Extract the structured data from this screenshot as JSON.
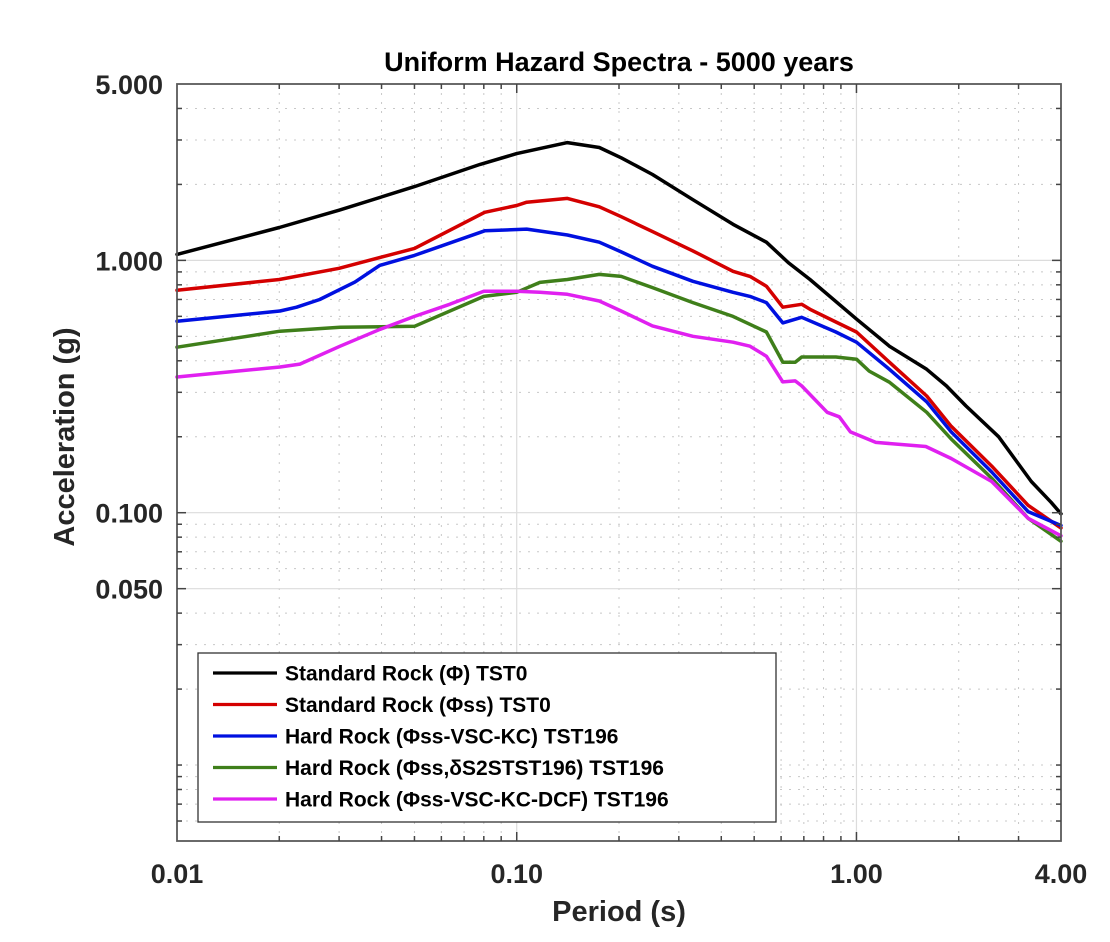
{
  "chart_data": {
    "type": "line",
    "title": "Uniform Hazard Spectra - 5000 years",
    "xlabel": "Period (s)",
    "ylabel": "Acceleration (g)",
    "xscale": "log",
    "yscale": "log",
    "xlim": [
      0.01,
      4.0
    ],
    "ylim": [
      0.005,
      5.0
    ],
    "xticks": [
      0.01,
      0.1,
      1.0,
      4.0
    ],
    "xtick_labels": [
      "0.01",
      "0.10",
      "1.00",
      "4.00"
    ],
    "yticks": [
      0.05,
      0.1,
      1.0,
      5.0
    ],
    "ytick_labels": [
      "0.050",
      "0.100",
      "1.000",
      "5.000"
    ],
    "grid": true,
    "legend_position": "bottom-left",
    "series": [
      {
        "name": "Standard Rock (Φ) TST0",
        "color": "#000000",
        "x": [
          0.01,
          0.02,
          0.03,
          0.05,
          0.078,
          0.1,
          0.141,
          0.175,
          0.203,
          0.251,
          0.33,
          0.433,
          0.543,
          0.63,
          0.73,
          1.0,
          1.25,
          1.61,
          1.84,
          2.1,
          2.62,
          3.27,
          3.74,
          4.0
        ],
        "y": [
          1.056,
          1.35,
          1.58,
          1.96,
          2.4,
          2.65,
          2.93,
          2.8,
          2.55,
          2.19,
          1.74,
          1.39,
          1.18,
          0.98,
          0.84,
          0.585,
          0.457,
          0.37,
          0.318,
          0.265,
          0.2,
          0.133,
          0.11,
          0.099
        ]
      },
      {
        "name": "Standard Rock (Φss) TST0",
        "color": "#d40000",
        "x": [
          0.01,
          0.02,
          0.03,
          0.05,
          0.0805,
          0.1,
          0.107,
          0.141,
          0.175,
          0.203,
          0.251,
          0.33,
          0.433,
          0.486,
          0.543,
          0.607,
          0.69,
          0.73,
          0.87,
          1.0,
          1.25,
          1.61,
          1.9,
          2.5,
          3.2,
          4.0
        ],
        "y": [
          0.761,
          0.84,
          0.93,
          1.115,
          1.55,
          1.65,
          1.7,
          1.76,
          1.63,
          1.49,
          1.3,
          1.09,
          0.905,
          0.864,
          0.79,
          0.652,
          0.67,
          0.64,
          0.57,
          0.52,
          0.395,
          0.29,
          0.22,
          0.153,
          0.107,
          0.087
        ]
      },
      {
        "name": "Hard Rock (Φss-VSC-KC) TST196",
        "color": "#0010e0",
        "x": [
          0.01,
          0.0201,
          0.0225,
          0.0263,
          0.0334,
          0.0395,
          0.05,
          0.0805,
          0.107,
          0.141,
          0.175,
          0.203,
          0.251,
          0.33,
          0.433,
          0.486,
          0.543,
          0.607,
          0.69,
          0.87,
          1.0,
          1.25,
          1.61,
          1.9,
          2.5,
          3.2,
          4.0
        ],
        "y": [
          0.574,
          0.63,
          0.652,
          0.7,
          0.82,
          0.955,
          1.046,
          1.31,
          1.33,
          1.26,
          1.18,
          1.08,
          0.947,
          0.826,
          0.747,
          0.72,
          0.68,
          0.565,
          0.595,
          0.52,
          0.474,
          0.37,
          0.275,
          0.209,
          0.145,
          0.101,
          0.089
        ]
      },
      {
        "name": "Hard Rock (Φss,δS2STST196) TST196",
        "color": "#3f7f1a",
        "x": [
          0.01,
          0.0201,
          0.0302,
          0.05,
          0.08,
          0.1,
          0.117,
          0.141,
          0.175,
          0.203,
          0.251,
          0.33,
          0.433,
          0.5,
          0.543,
          0.607,
          0.66,
          0.69,
          0.87,
          1.0,
          1.09,
          1.25,
          1.61,
          1.9,
          2.5,
          3.2,
          4.0
        ],
        "y": [
          0.453,
          0.524,
          0.543,
          0.548,
          0.72,
          0.747,
          0.818,
          0.84,
          0.88,
          0.864,
          0.78,
          0.68,
          0.6,
          0.548,
          0.52,
          0.395,
          0.395,
          0.414,
          0.414,
          0.406,
          0.364,
          0.329,
          0.25,
          0.196,
          0.137,
          0.095,
          0.077
        ]
      },
      {
        "name": "Hard Rock (Φss-VSC-KC-DCF) TST196",
        "color": "#e020f0",
        "x": [
          0.01,
          0.0201,
          0.023,
          0.0302,
          0.0396,
          0.05,
          0.0635,
          0.08,
          0.1,
          0.117,
          0.141,
          0.175,
          0.203,
          0.251,
          0.33,
          0.433,
          0.486,
          0.543,
          0.607,
          0.66,
          0.69,
          0.82,
          0.89,
          0.96,
          1.14,
          1.6,
          1.9,
          2.5,
          3.2,
          4.0
        ],
        "y": [
          0.345,
          0.378,
          0.388,
          0.457,
          0.533,
          0.6,
          0.67,
          0.754,
          0.754,
          0.747,
          0.734,
          0.69,
          0.63,
          0.55,
          0.5,
          0.474,
          0.457,
          0.417,
          0.33,
          0.333,
          0.318,
          0.25,
          0.24,
          0.209,
          0.19,
          0.183,
          0.164,
          0.133,
          0.095,
          0.081
        ]
      }
    ]
  }
}
